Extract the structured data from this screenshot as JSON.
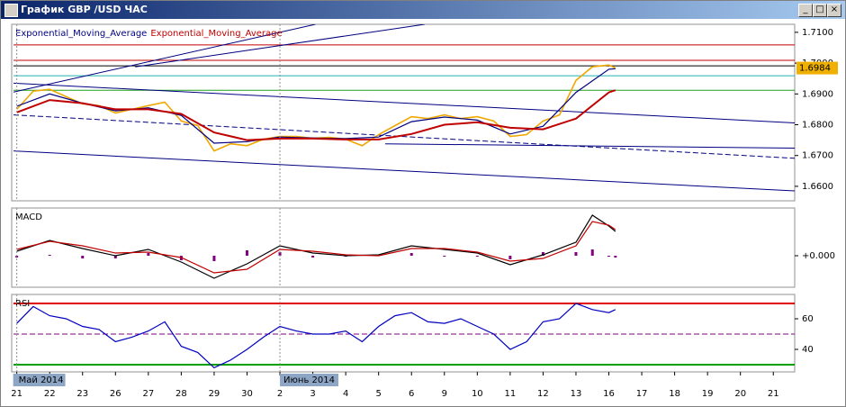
{
  "window": {
    "title": "График GBP /USD ЧАС"
  },
  "chart_data": [
    {
      "type": "line",
      "xlim": [
        -0.1,
        23.65
      ],
      "ylim": [
        1.6553,
        1.7126
      ],
      "yticks": [
        {
          "value": 1.71,
          "label": "1.7100"
        },
        {
          "value": 1.7,
          "label": "1.7000"
        },
        {
          "value": 1.69,
          "label": "1.6900"
        },
        {
          "value": 1.68,
          "label": "1.6800"
        },
        {
          "value": 1.67,
          "label": "1.6700"
        },
        {
          "value": 1.66,
          "label": "1.6600"
        }
      ],
      "last_value": 1.6984,
      "last_value_color": "#f0b000",
      "series": [
        {
          "color": "#f0a800",
          "x": [
            0,
            0.5,
            1,
            1.5,
            2,
            2.5,
            3,
            3.5,
            4,
            4.5,
            5,
            5.5,
            6,
            6.5,
            7,
            7.5,
            8,
            8.5,
            9,
            9.5,
            10,
            10.5,
            11,
            11.5,
            12,
            12.5,
            13,
            13.5,
            14,
            14.5,
            15,
            15.5,
            16,
            16.5,
            17,
            17.5,
            18,
            18.2
          ],
          "values": [
            1.685,
            1.6909,
            1.6915,
            1.6891,
            1.6868,
            1.6862,
            1.6838,
            1.685,
            1.6862,
            1.6873,
            1.6812,
            1.6797,
            1.6715,
            1.6738,
            1.6732,
            1.6753,
            1.6762,
            1.6762,
            1.6756,
            1.6759,
            1.6753,
            1.6732,
            1.6768,
            1.6797,
            1.6826,
            1.682,
            1.6832,
            1.682,
            1.6826,
            1.6812,
            1.6762,
            1.6768,
            1.6812,
            1.6832,
            1.6944,
            1.6988,
            1.6994,
            1.6984
          ]
        },
        {
          "name": "Exponential_Moving_Average",
          "color": "#000080",
          "x": [
            0,
            1,
            2,
            3,
            4,
            5,
            6,
            7,
            8,
            9,
            10,
            11,
            12,
            13,
            14,
            15,
            16,
            17,
            18,
            18.2
          ],
          "values": [
            1.686,
            1.69,
            1.687,
            1.6845,
            1.6855,
            1.683,
            1.674,
            1.6745,
            1.676,
            1.6757,
            1.6755,
            1.676,
            1.681,
            1.6825,
            1.6815,
            1.677,
            1.6795,
            1.6905,
            1.698,
            1.6982
          ]
        },
        {
          "name": "Exponential_Moving_Average",
          "color": "#c00000",
          "x": [
            0,
            1,
            2,
            3,
            4,
            5,
            6,
            7,
            8,
            9,
            10,
            11,
            12,
            13,
            14,
            15,
            16,
            17,
            18,
            18.2
          ],
          "values": [
            1.684,
            1.688,
            1.687,
            1.685,
            1.685,
            1.6835,
            1.6775,
            1.675,
            1.6755,
            1.6755,
            1.6752,
            1.6752,
            1.677,
            1.68,
            1.6808,
            1.679,
            1.6785,
            1.682,
            1.6905,
            1.6912
          ]
        }
      ],
      "hlines": [
        {
          "value": 1.7059,
          "color": "#c00000"
        },
        {
          "value": 1.7009,
          "color": "#c00000"
        },
        {
          "value": 1.6991,
          "color": "#000000"
        },
        {
          "value": 1.6959,
          "color": "#20b0b0"
        },
        {
          "value": 1.6912,
          "color": "#20a020"
        }
      ],
      "trendlines": [
        {
          "color": "#000080",
          "x": [
            -0.1,
            9.08
          ],
          "values": [
            1.6906,
            1.7126
          ]
        },
        {
          "color": "#000080",
          "x": [
            3.6,
            12.4
          ],
          "values": [
            1.6988,
            1.7126
          ]
        },
        {
          "color": "#000080",
          "x": [
            -0.1,
            23.65
          ],
          "values": [
            1.6935,
            1.6806
          ]
        },
        {
          "color": "#000080",
          "x": [
            -0.1,
            23.65
          ],
          "values": [
            1.6832,
            1.6691
          ],
          "dash": true
        },
        {
          "color": "#000080",
          "x": [
            -0.1,
            23.65
          ],
          "values": [
            1.6715,
            1.6585
          ]
        },
        {
          "color": "#000080",
          "x": [
            11.2,
            23.65
          ],
          "values": [
            1.6738,
            1.6724
          ]
        }
      ]
    },
    {
      "type": "line",
      "title": "MACD",
      "xlim": [
        -0.1,
        23.65
      ],
      "ylim": [
        -0.0035,
        0.0053
      ],
      "yticks": [
        {
          "value": 0,
          "label": "+0.000"
        }
      ],
      "histogram": {
        "color": "#800080",
        "x": [
          0,
          1,
          2,
          3,
          4,
          5,
          6,
          7,
          8,
          9,
          10,
          11,
          12,
          13,
          14,
          15,
          16,
          17,
          17.5,
          18,
          18.2
        ],
        "values": [
          -0.0002,
          0.0001,
          -0.0003,
          -0.0003,
          0.0003,
          -0.0005,
          -0.0006,
          0.0006,
          0.0004,
          -0.0002,
          -0.0001,
          0.0001,
          0.0003,
          -0.0001,
          -0.0001,
          -0.0004,
          0.0004,
          0.0004,
          0.0007,
          -0.0001,
          -0.0002
        ]
      },
      "series": [
        {
          "color": "#000000",
          "x": [
            0,
            1,
            2,
            3,
            4,
            5,
            6,
            7,
            8,
            9,
            10,
            11,
            12,
            13,
            14,
            15,
            16,
            17,
            17.5,
            18,
            18.2
          ],
          "values": [
            0.0005,
            0.0017,
            0.0008,
            0,
            0.0007,
            -0.0007,
            -0.0025,
            -0.0009,
            0.0011,
            0.0003,
            0,
            0.0001,
            0.0011,
            0.0007,
            0.0003,
            -0.001,
            0.0001,
            0.0015,
            0.0045,
            0.0033,
            0.0027
          ]
        },
        {
          "color": "#c00000",
          "x": [
            0,
            1,
            2,
            3,
            4,
            5,
            6,
            7,
            8,
            9,
            10,
            11,
            12,
            13,
            14,
            15,
            16,
            17,
            17.5,
            18,
            18.2
          ],
          "values": [
            0.0007,
            0.0016,
            0.0011,
            0.0003,
            0.0004,
            -0.0002,
            -0.0019,
            -0.0015,
            0.0007,
            0.0005,
            0.0001,
            0,
            0.0008,
            0.0008,
            0.0004,
            -0.0006,
            -0.0003,
            0.0011,
            0.0038,
            0.0034,
            0.0029
          ]
        }
      ]
    },
    {
      "type": "line",
      "title": "RSI",
      "xlim": [
        -0.1,
        23.65
      ],
      "ylim": [
        25.3,
        75.9
      ],
      "yticks": [
        60,
        40
      ],
      "xticks": [
        {
          "value": 0,
          "label": "21"
        },
        {
          "value": 1,
          "label": "22"
        },
        {
          "value": 2,
          "label": "23"
        },
        {
          "value": 3,
          "label": "26"
        },
        {
          "value": 4,
          "label": "27"
        },
        {
          "value": 5,
          "label": "28"
        },
        {
          "value": 6,
          "label": "29"
        },
        {
          "value": 7,
          "label": "30"
        },
        {
          "value": 8,
          "label": "2"
        },
        {
          "value": 9,
          "label": "3"
        },
        {
          "value": 10,
          "label": "4"
        },
        {
          "value": 11,
          "label": "5"
        },
        {
          "value": 12,
          "label": "6"
        },
        {
          "value": 13,
          "label": "9"
        },
        {
          "value": 14,
          "label": "10"
        },
        {
          "value": 15,
          "label": "11"
        },
        {
          "value": 16,
          "label": "12"
        },
        {
          "value": 17,
          "label": "13"
        },
        {
          "value": 18,
          "label": "16"
        },
        {
          "value": 19,
          "label": "17"
        },
        {
          "value": 20,
          "label": "18"
        },
        {
          "value": 21,
          "label": "19"
        },
        {
          "value": 22,
          "label": "20"
        },
        {
          "value": 23,
          "label": "21"
        }
      ],
      "period_labels": [
        {
          "x": 0,
          "label": "Май 2014"
        },
        {
          "x": 8,
          "label": "Июнь 2014"
        }
      ],
      "hlines": [
        {
          "value": 70,
          "color": "#e00000"
        },
        {
          "value": 50,
          "color": "#800080",
          "dash": true
        },
        {
          "value": 30,
          "color": "#00a000"
        }
      ],
      "series": [
        {
          "color": "#0000c0",
          "x": [
            0,
            0.5,
            1,
            1.5,
            2,
            2.5,
            3,
            3.5,
            4,
            4.5,
            5,
            5.5,
            6,
            6.5,
            7,
            7.5,
            8,
            8.5,
            9,
            9.5,
            10,
            10.5,
            11,
            11.5,
            12,
            12.5,
            13,
            13.5,
            14,
            14.5,
            15,
            15.5,
            16,
            16.5,
            17,
            17.5,
            18,
            18.2
          ],
          "values": [
            57,
            68,
            62,
            60,
            55,
            53,
            45,
            48,
            52,
            58,
            42,
            38,
            28,
            33,
            40,
            48,
            55,
            52,
            50,
            50,
            52,
            45,
            55,
            62,
            64,
            58,
            57,
            60,
            55,
            50,
            40,
            45,
            58,
            60,
            70,
            66,
            64,
            66
          ]
        }
      ]
    }
  ]
}
